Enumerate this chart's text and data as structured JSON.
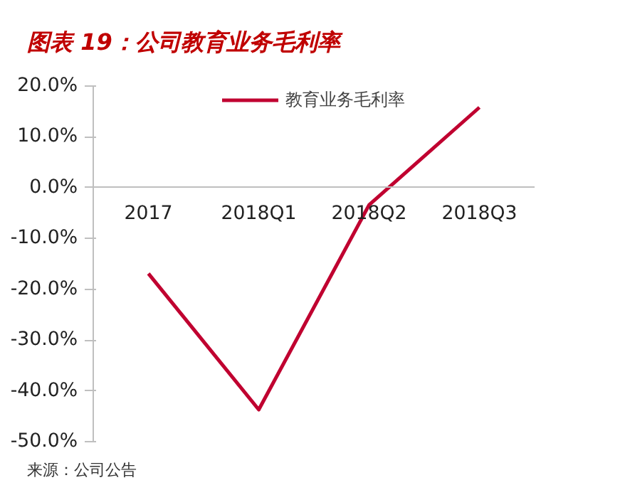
{
  "chart_data": {
    "type": "line",
    "title": "图表 19：公司教育业务毛利率",
    "categories": [
      "2017",
      "2018Q1",
      "2018Q2",
      "2018Q3"
    ],
    "series": [
      {
        "name": "教育业务毛利率",
        "color": "#c00030",
        "values": [
          -16.9,
          -43.7,
          -3.4,
          15.8
        ]
      }
    ],
    "ylim": [
      -50,
      20
    ],
    "yticks": [
      {
        "value": -50,
        "label": "-50.0%"
      },
      {
        "value": -40,
        "label": "-40.0%"
      },
      {
        "value": -30,
        "label": "-30.0%"
      },
      {
        "value": -20,
        "label": "-20.0%"
      },
      {
        "value": -10,
        "label": "-10.0%"
      },
      {
        "value": 0,
        "label": "0.0%"
      },
      {
        "value": 10,
        "label": "10.0%"
      },
      {
        "value": 20,
        "label": "20.0%"
      }
    ],
    "legend": "top",
    "grid": false,
    "marker": "none",
    "line_style": "solid",
    "annotations": [
      "来源：公司公告"
    ]
  }
}
